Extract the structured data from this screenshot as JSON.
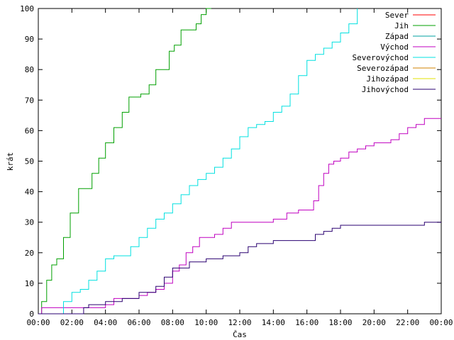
{
  "chart_data": {
    "type": "line",
    "xlabel": "Čas",
    "ylabel": "krát",
    "xlim": [
      0,
      24
    ],
    "ylim": [
      0,
      100
    ],
    "x_ticks": [
      {
        "v": 0,
        "label": "00:00"
      },
      {
        "v": 2,
        "label": "02:00"
      },
      {
        "v": 4,
        "label": "04:00"
      },
      {
        "v": 6,
        "label": "06:00"
      },
      {
        "v": 8,
        "label": "08:00"
      },
      {
        "v": 10,
        "label": "10:00"
      },
      {
        "v": 12,
        "label": "12:00"
      },
      {
        "v": 14,
        "label": "14:00"
      },
      {
        "v": 16,
        "label": "16:00"
      },
      {
        "v": 18,
        "label": "18:00"
      },
      {
        "v": 20,
        "label": "20:00"
      },
      {
        "v": 22,
        "label": "22:00"
      },
      {
        "v": 24,
        "label": "00:00"
      }
    ],
    "y_ticks": [
      {
        "v": 0,
        "label": "0"
      },
      {
        "v": 10,
        "label": "10"
      },
      {
        "v": 20,
        "label": "20"
      },
      {
        "v": 30,
        "label": "30"
      },
      {
        "v": 40,
        "label": "40"
      },
      {
        "v": 50,
        "label": "50"
      },
      {
        "v": 60,
        "label": "60"
      },
      {
        "v": 70,
        "label": "70"
      },
      {
        "v": 80,
        "label": "80"
      },
      {
        "v": 90,
        "label": "90"
      },
      {
        "v": 100,
        "label": "100"
      }
    ],
    "grid": false,
    "legend_position": "top-right",
    "series": [
      {
        "name": "Sever",
        "color": "#ff0000",
        "x": [],
        "y": []
      },
      {
        "name": "Jih",
        "color": "#00a000",
        "x": [
          0,
          0.2,
          0.5,
          0.8,
          1.1,
          1.5,
          1.9,
          2.4,
          2.7,
          3.2,
          3.6,
          4.0,
          4.5,
          5.0,
          5.4,
          5.8,
          6.1,
          6.6,
          7.0,
          7.4,
          7.8,
          8.1,
          8.5,
          8.8,
          9.1,
          9.4,
          9.7,
          10.0,
          10.3
        ],
        "y": [
          0,
          4,
          11,
          16,
          18,
          25,
          33,
          41,
          41,
          46,
          51,
          56,
          61,
          66,
          71,
          71,
          72,
          75,
          80,
          80,
          86,
          88,
          93,
          93,
          93,
          95,
          98,
          100,
          100
        ]
      },
      {
        "name": "Západ",
        "color": "#00a0a0",
        "x": [],
        "y": []
      },
      {
        "name": "Východ",
        "color": "#c000c0",
        "x": [
          0,
          0.2,
          1.0,
          2.0,
          3.0,
          4.0,
          4.5,
          5.0,
          6.0,
          6.5,
          7.0,
          7.5,
          8.0,
          8.4,
          8.8,
          9.2,
          9.6,
          10.0,
          10.5,
          11.0,
          11.5,
          12.0,
          13.0,
          14.0,
          14.8,
          15.5,
          16.2,
          16.4,
          16.7,
          17.0,
          17.3,
          17.6,
          18.0,
          18.5,
          19.0,
          19.5,
          20.0,
          20.5,
          21.0,
          21.5,
          22.0,
          22.5,
          23.0,
          24.0
        ],
        "y": [
          0,
          2,
          2,
          2,
          2,
          3,
          5,
          5,
          6,
          7,
          8,
          10,
          14,
          16,
          20,
          22,
          25,
          25,
          26,
          28,
          30,
          30,
          30,
          31,
          33,
          34,
          34,
          37,
          42,
          46,
          49,
          50,
          51,
          53,
          54,
          55,
          56,
          56,
          57,
          59,
          61,
          62,
          64,
          64
        ]
      },
      {
        "name": "Severovýchod",
        "color": "#00e0e0",
        "x": [
          0,
          1.1,
          1.5,
          2.0,
          2.5,
          3.0,
          3.5,
          4.0,
          4.5,
          5.0,
          5.5,
          6.0,
          6.5,
          7.0,
          7.5,
          8.0,
          8.5,
          9.0,
          9.5,
          10.0,
          10.5,
          11.0,
          11.5,
          12.0,
          12.5,
          13.0,
          13.5,
          14.0,
          14.5,
          15.0,
          15.5,
          16.0,
          16.5,
          17.0,
          17.5,
          18.0,
          18.5,
          19.0
        ],
        "y": [
          0,
          0,
          4,
          7,
          8,
          11,
          14,
          18,
          19,
          19,
          22,
          25,
          28,
          31,
          33,
          36,
          39,
          42,
          44,
          46,
          48,
          51,
          54,
          58,
          61,
          62,
          63,
          66,
          68,
          72,
          78,
          83,
          85,
          87,
          89,
          92,
          95,
          100
        ]
      },
      {
        "name": "Severozápad",
        "color": "#d08000",
        "x": [],
        "y": []
      },
      {
        "name": "Jihozápad",
        "color": "#e0e000",
        "x": [],
        "y": []
      },
      {
        "name": "Jihovýchod",
        "color": "#2a0070",
        "x": [
          0,
          2.7,
          3.0,
          4.0,
          5.0,
          6.0,
          7.0,
          7.5,
          8.0,
          9.0,
          10.0,
          11.0,
          12.0,
          12.5,
          13.0,
          14.0,
          15.0,
          16.0,
          16.5,
          17.0,
          17.5,
          18.0,
          20.0,
          22.0,
          23.0,
          24.0
        ],
        "y": [
          0,
          2,
          3,
          4,
          5,
          7,
          9,
          12,
          15,
          17,
          18,
          19,
          20,
          22,
          23,
          24,
          24,
          24,
          26,
          27,
          28,
          29,
          29,
          29,
          30,
          30
        ]
      }
    ]
  }
}
